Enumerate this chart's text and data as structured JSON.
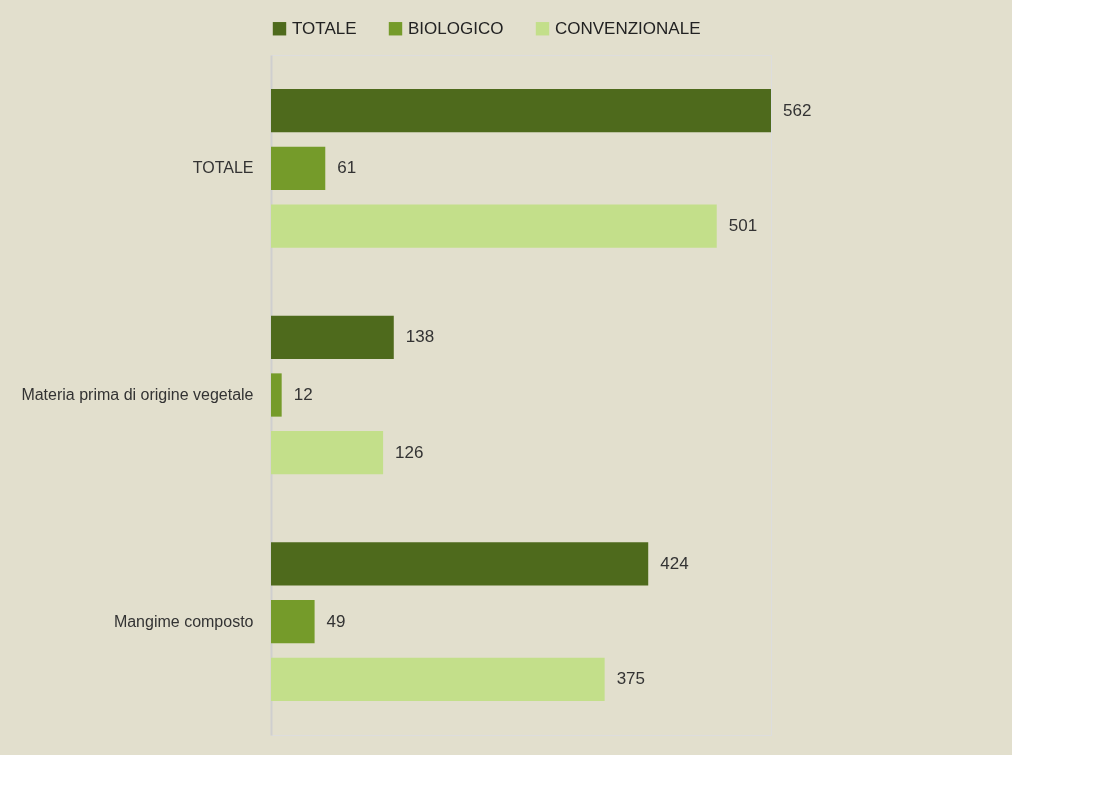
{
  "chart_data": {
    "type": "bar",
    "orientation": "horizontal",
    "categories": [
      "TOTALE",
      "Materia prima di origine vegetale",
      "Mangime composto"
    ],
    "series": [
      {
        "name": "TOTALE",
        "color": "#4e6a1c",
        "values": [
          562,
          138,
          424
        ]
      },
      {
        "name": "BIOLOGICO",
        "color": "#759b2a",
        "values": [
          61,
          12,
          49
        ]
      },
      {
        "name": "CONVENZIONALE",
        "color": "#c3df8a",
        "values": [
          501,
          126,
          375
        ]
      }
    ],
    "data_labels": true,
    "legend": "top",
    "grid": false
  }
}
